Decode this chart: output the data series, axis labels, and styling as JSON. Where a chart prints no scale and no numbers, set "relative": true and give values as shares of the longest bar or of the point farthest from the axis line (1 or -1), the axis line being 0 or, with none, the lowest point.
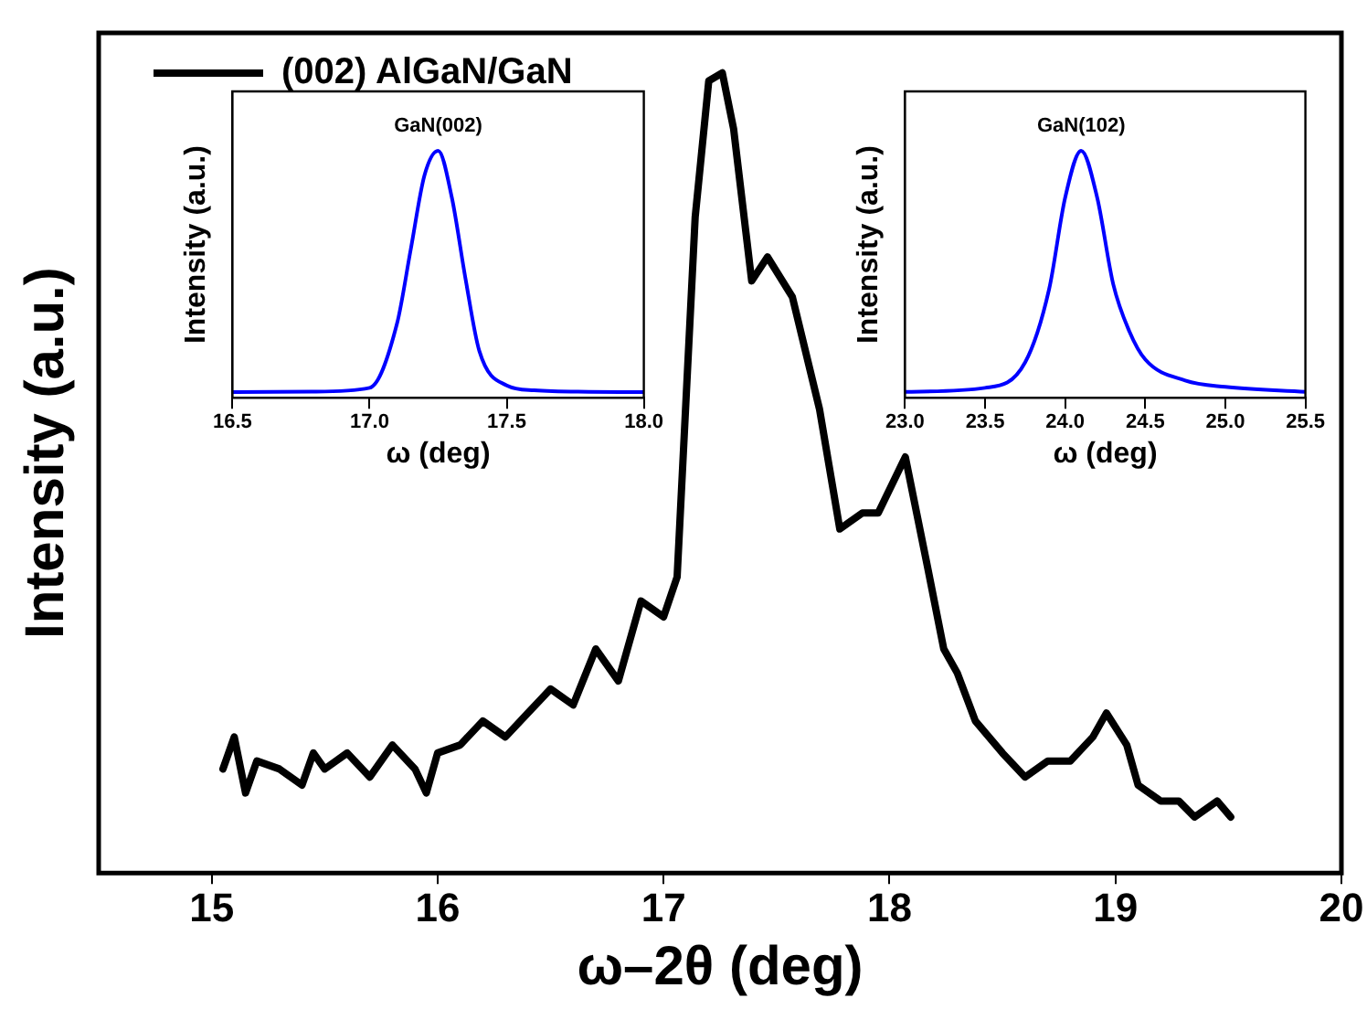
{
  "chart_data": [
    {
      "type": "line",
      "xlabel": "ω–2θ (deg)",
      "ylabel": "Intensity (a.u.)",
      "relative": true,
      "xlim": [
        14.5,
        20
      ],
      "xticks": [
        15,
        16,
        17,
        18,
        19,
        20
      ],
      "legend": "top left",
      "grid": false,
      "marker": "none",
      "line_style": "solid",
      "series": [
        {
          "name": "(002) AlGaN/GaN",
          "color": "#000000",
          "x": [
            15.05,
            15.1,
            15.15,
            15.2,
            15.3,
            15.4,
            15.45,
            15.5,
            15.6,
            15.7,
            15.8,
            15.9,
            15.95,
            16.0,
            16.1,
            16.2,
            16.3,
            16.4,
            16.5,
            16.6,
            16.7,
            16.8,
            16.9,
            17.0,
            17.06,
            17.14,
            17.2,
            17.26,
            17.31,
            17.39,
            17.46,
            17.57,
            17.69,
            17.78,
            17.88,
            17.95,
            18.07,
            18.17,
            18.24,
            18.3,
            18.38,
            18.5,
            18.6,
            18.7,
            18.8,
            18.9,
            18.96,
            19.05,
            19.1,
            19.2,
            19.28,
            19.35,
            19.45,
            19.51
          ],
          "values": [
            0.13,
            0.17,
            0.1,
            0.14,
            0.13,
            0.11,
            0.15,
            0.13,
            0.15,
            0.12,
            0.16,
            0.13,
            0.1,
            0.15,
            0.16,
            0.19,
            0.17,
            0.2,
            0.23,
            0.21,
            0.28,
            0.24,
            0.34,
            0.32,
            0.37,
            0.82,
            0.99,
            1,
            0.93,
            0.74,
            0.77,
            0.72,
            0.58,
            0.43,
            0.45,
            0.45,
            0.52,
            0.38,
            0.28,
            0.25,
            0.19,
            0.15,
            0.12,
            0.14,
            0.14,
            0.17,
            0.2,
            0.16,
            0.11,
            0.09,
            0.09,
            0.07,
            0.09,
            0.07
          ]
        }
      ]
    },
    {
      "type": "line",
      "xlabel": "ω (deg)",
      "ylabel": "Intensity (a.u.)",
      "relative": true,
      "xlim": [
        16.5,
        18
      ],
      "xticks": [
        16.5,
        {
          "value": 17,
          "label": "17.0"
        },
        17.5,
        {
          "value": 18,
          "label": "18.0"
        }
      ],
      "grid": false,
      "marker": "none",
      "line_style": "solid",
      "annotations": [
        {
          "text": "GaN(002)",
          "x": 17.25,
          "y": 1
        }
      ],
      "series": [
        {
          "color": "#0000ff",
          "x": [
            16.5,
            16.8,
            17.0,
            17.1,
            17.15,
            17.2,
            17.25,
            17.3,
            17.35,
            17.4,
            17.5,
            17.6,
            17.8,
            18.0
          ],
          "values": [
            0.023,
            0.025,
            0.04,
            0.3,
            0.6,
            0.9,
            1,
            0.81,
            0.48,
            0.19,
            0.05,
            0.03,
            0.024,
            0.023
          ]
        }
      ]
    },
    {
      "type": "line",
      "xlabel": "ω (deg)",
      "ylabel": "Intensity (a.u.)",
      "relative": true,
      "xlim": [
        23,
        25.5
      ],
      "xticks": [
        {
          "value": 23,
          "label": "23.0"
        },
        23.5,
        {
          "value": 24,
          "label": "24.0"
        },
        24.5,
        {
          "value": 25,
          "label": "25.0"
        },
        25.5
      ],
      "grid": false,
      "marker": "none",
      "line_style": "solid",
      "annotations": [
        {
          "text": "GaN(102)",
          "x": 24.1,
          "y": 1
        }
      ],
      "series": [
        {
          "color": "#0000ff",
          "x": [
            23.0,
            23.5,
            23.75,
            23.9,
            24.0,
            24.1,
            24.2,
            24.3,
            24.4,
            24.5,
            24.75,
            25.0,
            25.5
          ],
          "values": [
            0.024,
            0.04,
            0.143,
            0.44,
            0.81,
            1,
            0.81,
            0.46,
            0.27,
            0.155,
            0.07,
            0.044,
            0.024
          ]
        }
      ]
    }
  ]
}
